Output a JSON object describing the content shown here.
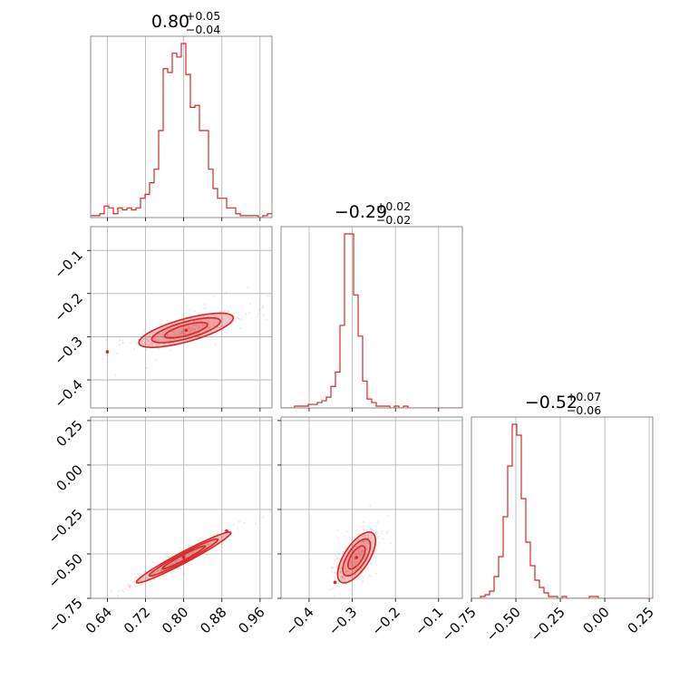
{
  "chart_data": {
    "type": "corner",
    "color": "#d62728",
    "grid": true,
    "parameters": [
      {
        "title": {
          "median": "0.80",
          "plus": "+0.05",
          "minus": "−0.04"
        },
        "range": [
          0.605,
          0.985
        ],
        "ticks": [
          0.64,
          0.72,
          0.8,
          0.88,
          0.96
        ],
        "tick_labels": [
          "0.64",
          "0.72",
          "0.80",
          "0.88",
          "0.96"
        ]
      },
      {
        "title": {
          "median": "−0.29",
          "plus": "+0.02",
          "minus": "−0.02"
        },
        "range": [
          -0.465,
          -0.045
        ],
        "ticks": [
          -0.4,
          -0.3,
          -0.2,
          -0.1
        ],
        "tick_labels": [
          "−0.4",
          "−0.3",
          "−0.2",
          "−0.1"
        ]
      },
      {
        "title": {
          "median": "−0.52",
          "plus": "+0.07",
          "minus": "−0.06"
        },
        "range": [
          -0.75,
          0.27
        ],
        "ticks": [
          -0.75,
          -0.5,
          -0.25,
          0.0,
          0.25
        ],
        "tick_labels": [
          "−0.75",
          "−0.50",
          "−0.25",
          "0.00",
          "0.25"
        ]
      }
    ],
    "histograms": [
      {
        "edges": [
          0.605,
          0.6145,
          0.624,
          0.6335,
          0.643,
          0.6525,
          0.662,
          0.6715,
          0.681,
          0.6905,
          0.7,
          0.7095,
          0.719,
          0.7285,
          0.738,
          0.7475,
          0.757,
          0.7665,
          0.776,
          0.7855,
          0.795,
          0.8045,
          0.814,
          0.8235,
          0.833,
          0.8425,
          0.852,
          0.8615,
          0.871,
          0.8805,
          0.89,
          0.8995,
          0.909,
          0.9185,
          0.928,
          0.9375,
          0.947,
          0.9565,
          0.966,
          0.9755,
          0.985
        ],
        "counts": [
          1,
          1,
          2,
          6,
          5,
          2,
          5,
          4,
          5,
          4,
          5,
          10,
          12,
          18,
          25,
          45,
          77,
          75,
          85,
          83,
          90,
          74,
          57,
          58,
          45,
          45,
          25,
          15,
          10,
          10,
          5,
          5,
          2,
          1,
          1,
          1,
          1,
          0,
          1,
          2
        ]
      },
      {
        "edges": [
          -0.465,
          -0.4545,
          -0.444,
          -0.4335,
          -0.423,
          -0.4125,
          -0.402,
          -0.3915,
          -0.381,
          -0.3705,
          -0.36,
          -0.3495,
          -0.339,
          -0.3285,
          -0.318,
          -0.3075,
          -0.297,
          -0.2865,
          -0.276,
          -0.2655,
          -0.255,
          -0.2445,
          -0.234,
          -0.2235,
          -0.213,
          -0.2025,
          -0.192,
          -0.1815,
          -0.171,
          -0.1605,
          -0.15,
          -0.1395,
          -0.129,
          -0.1185,
          -0.108,
          -0.0975,
          -0.087,
          -0.0765,
          -0.066,
          -0.0555,
          -0.045
        ],
        "counts": [
          0,
          0,
          0,
          1,
          1,
          1,
          2,
          2,
          3,
          4,
          6,
          12,
          20,
          46,
          97,
          97,
          63,
          40,
          15,
          5,
          3,
          1,
          1,
          1,
          0,
          1,
          0,
          1,
          0,
          0,
          0,
          0,
          0,
          0,
          0,
          0,
          0,
          0,
          0,
          0
        ]
      },
      {
        "edges": [
          -0.75,
          -0.7245,
          -0.699,
          -0.6735,
          -0.648,
          -0.6225,
          -0.597,
          -0.5715,
          -0.546,
          -0.5205,
          -0.495,
          -0.4695,
          -0.444,
          -0.4185,
          -0.393,
          -0.3675,
          -0.342,
          -0.3165,
          -0.291,
          -0.2655,
          -0.24,
          -0.2145,
          -0.189,
          -0.1635,
          -0.138,
          -0.1125,
          -0.087,
          -0.0615,
          -0.036,
          -0.0105,
          0.015,
          0.0405,
          0.066,
          0.0915,
          0.117,
          0.1425,
          0.168,
          0.1935,
          0.219,
          0.2445,
          0.27
        ],
        "counts": [
          0,
          0,
          1,
          2,
          4,
          12,
          23,
          45,
          73,
          96,
          90,
          55,
          31,
          18,
          10,
          6,
          3,
          1,
          1,
          0,
          1,
          0,
          0,
          0,
          0,
          0,
          1,
          1,
          0,
          0,
          0,
          0,
          0,
          0,
          0,
          0,
          0,
          0,
          0,
          0
        ]
      }
    ],
    "pairs": [
      {
        "x_param": 0,
        "y_param": 1,
        "mean": [
          0.805,
          -0.285
        ],
        "std": [
          0.045,
          0.018
        ],
        "corr": 0.72,
        "levels": [
          1.0,
          1.6,
          2.2
        ],
        "outlier": [
          0.64,
          -0.335
        ]
      },
      {
        "x_param": 0,
        "y_param": 2,
        "mean": [
          0.8,
          -0.52
        ],
        "std": [
          0.045,
          0.065
        ],
        "corr": 0.97,
        "levels": [
          1.0,
          1.6,
          2.2
        ],
        "outlier": [
          0.89,
          -0.37
        ]
      },
      {
        "x_param": 1,
        "y_param": 2,
        "mean": [
          -0.29,
          -0.52
        ],
        "std": [
          0.02,
          0.065
        ],
        "corr": 0.66,
        "levels": [
          1.0,
          1.6,
          2.2
        ],
        "outlier": [
          -0.34,
          -0.66
        ]
      }
    ]
  }
}
